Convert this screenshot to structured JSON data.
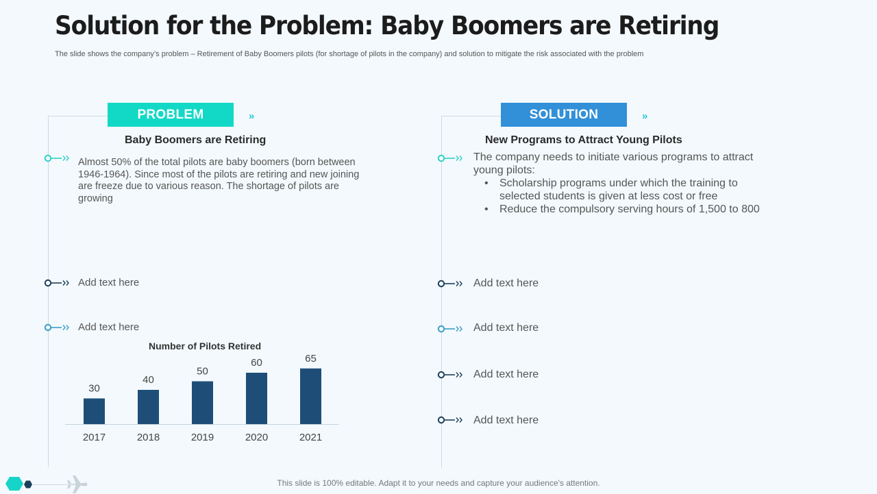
{
  "header": {
    "title": "Solution for the Problem: Baby Boomers are Retiring",
    "subtitle": "The slide shows the company’s problem – Retirement of Baby Boomers pilots (for shortage of pilots in the company) and solution to mitigate the risk associated with the problem"
  },
  "problem": {
    "tab_label": "PROBLEM",
    "tab_color": "#12d9c6",
    "chevron": "»",
    "heading": "Baby Boomers are Retiring",
    "paragraph": "Almost 50% of the total pilots are baby boomers (born between 1946-1964). Since most of the pilots are retiring and new joining are freeze due to various reason. The shortage of pilots are growing",
    "add_items": [
      "Add text here",
      "Add text here"
    ]
  },
  "solution": {
    "tab_label": "SOLUTION",
    "tab_color": "#3290d8",
    "chevron": "»",
    "heading": "New Programs to Attract Young Pilots",
    "intro": "The company needs to initiate various programs to attract young pilots:",
    "bullets": [
      "Scholarship programs under which the training to selected students is given at less cost or free",
      "Reduce the compulsory serving hours of 1,500 to 800"
    ],
    "add_items": [
      "Add text here",
      "Add text here",
      "Add text here",
      "Add text here"
    ]
  },
  "chart_data": {
    "type": "bar",
    "title": "Number of Pilots Retired",
    "categories": [
      "2017",
      "2018",
      "2019",
      "2020",
      "2021"
    ],
    "values": [
      30,
      40,
      50,
      60,
      65
    ],
    "xlabel": "",
    "ylabel": "",
    "ylim": [
      0,
      100
    ],
    "bar_color": "#1e4e78",
    "grid": false
  },
  "footer": {
    "text": "This slide is 100% editable. Adapt it to your needs and capture your audience's attention."
  },
  "colors": {
    "teal": "#12d9c6",
    "blue": "#3290d8",
    "navy": "#1e3f5a",
    "marker_light": "#2fb8c6",
    "marker_dark": "#1e3f5a"
  },
  "icons": {
    "plane": "airplane-icon",
    "hexagon": "hexagon-icon"
  }
}
